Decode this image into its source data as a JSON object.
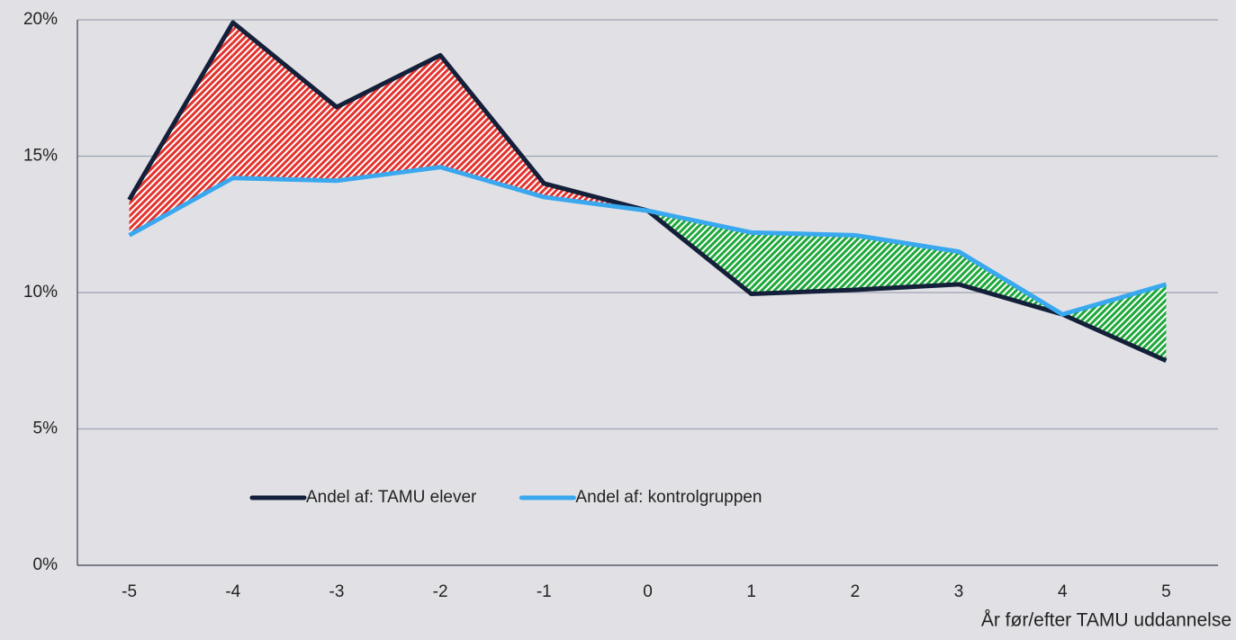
{
  "chart_data": {
    "type": "line",
    "x_label": "År før/efter TAMU uddannelse",
    "categories": [
      "-5",
      "-4",
      "-3",
      "-2",
      "-1",
      "0",
      "1",
      "2",
      "3",
      "4",
      "5"
    ],
    "series": [
      {
        "name": "Andel af: TAMU elever",
        "color": "#14203a",
        "values": [
          13.4,
          19.9,
          16.8,
          18.7,
          14.0,
          13.0,
          9.95,
          10.1,
          10.3,
          9.2,
          7.5
        ]
      },
      {
        "name": "Andel af: kontrolgruppen",
        "color": "#3aa8ef",
        "values": [
          12.1,
          14.2,
          14.1,
          14.6,
          13.5,
          13.0,
          12.2,
          12.1,
          11.5,
          9.2,
          10.3
        ]
      }
    ],
    "fill_colors": {
      "above": "#e3332e",
      "below": "#1ea83a"
    },
    "ylim": [
      0,
      20
    ],
    "yticks": [
      {
        "value": 0,
        "label": "0%"
      },
      {
        "value": 5,
        "label": "5%"
      },
      {
        "value": 10,
        "label": "10%"
      },
      {
        "value": 15,
        "label": "15%"
      },
      {
        "value": 20,
        "label": "20%"
      }
    ],
    "grid": true,
    "legend": "bottom-left"
  }
}
